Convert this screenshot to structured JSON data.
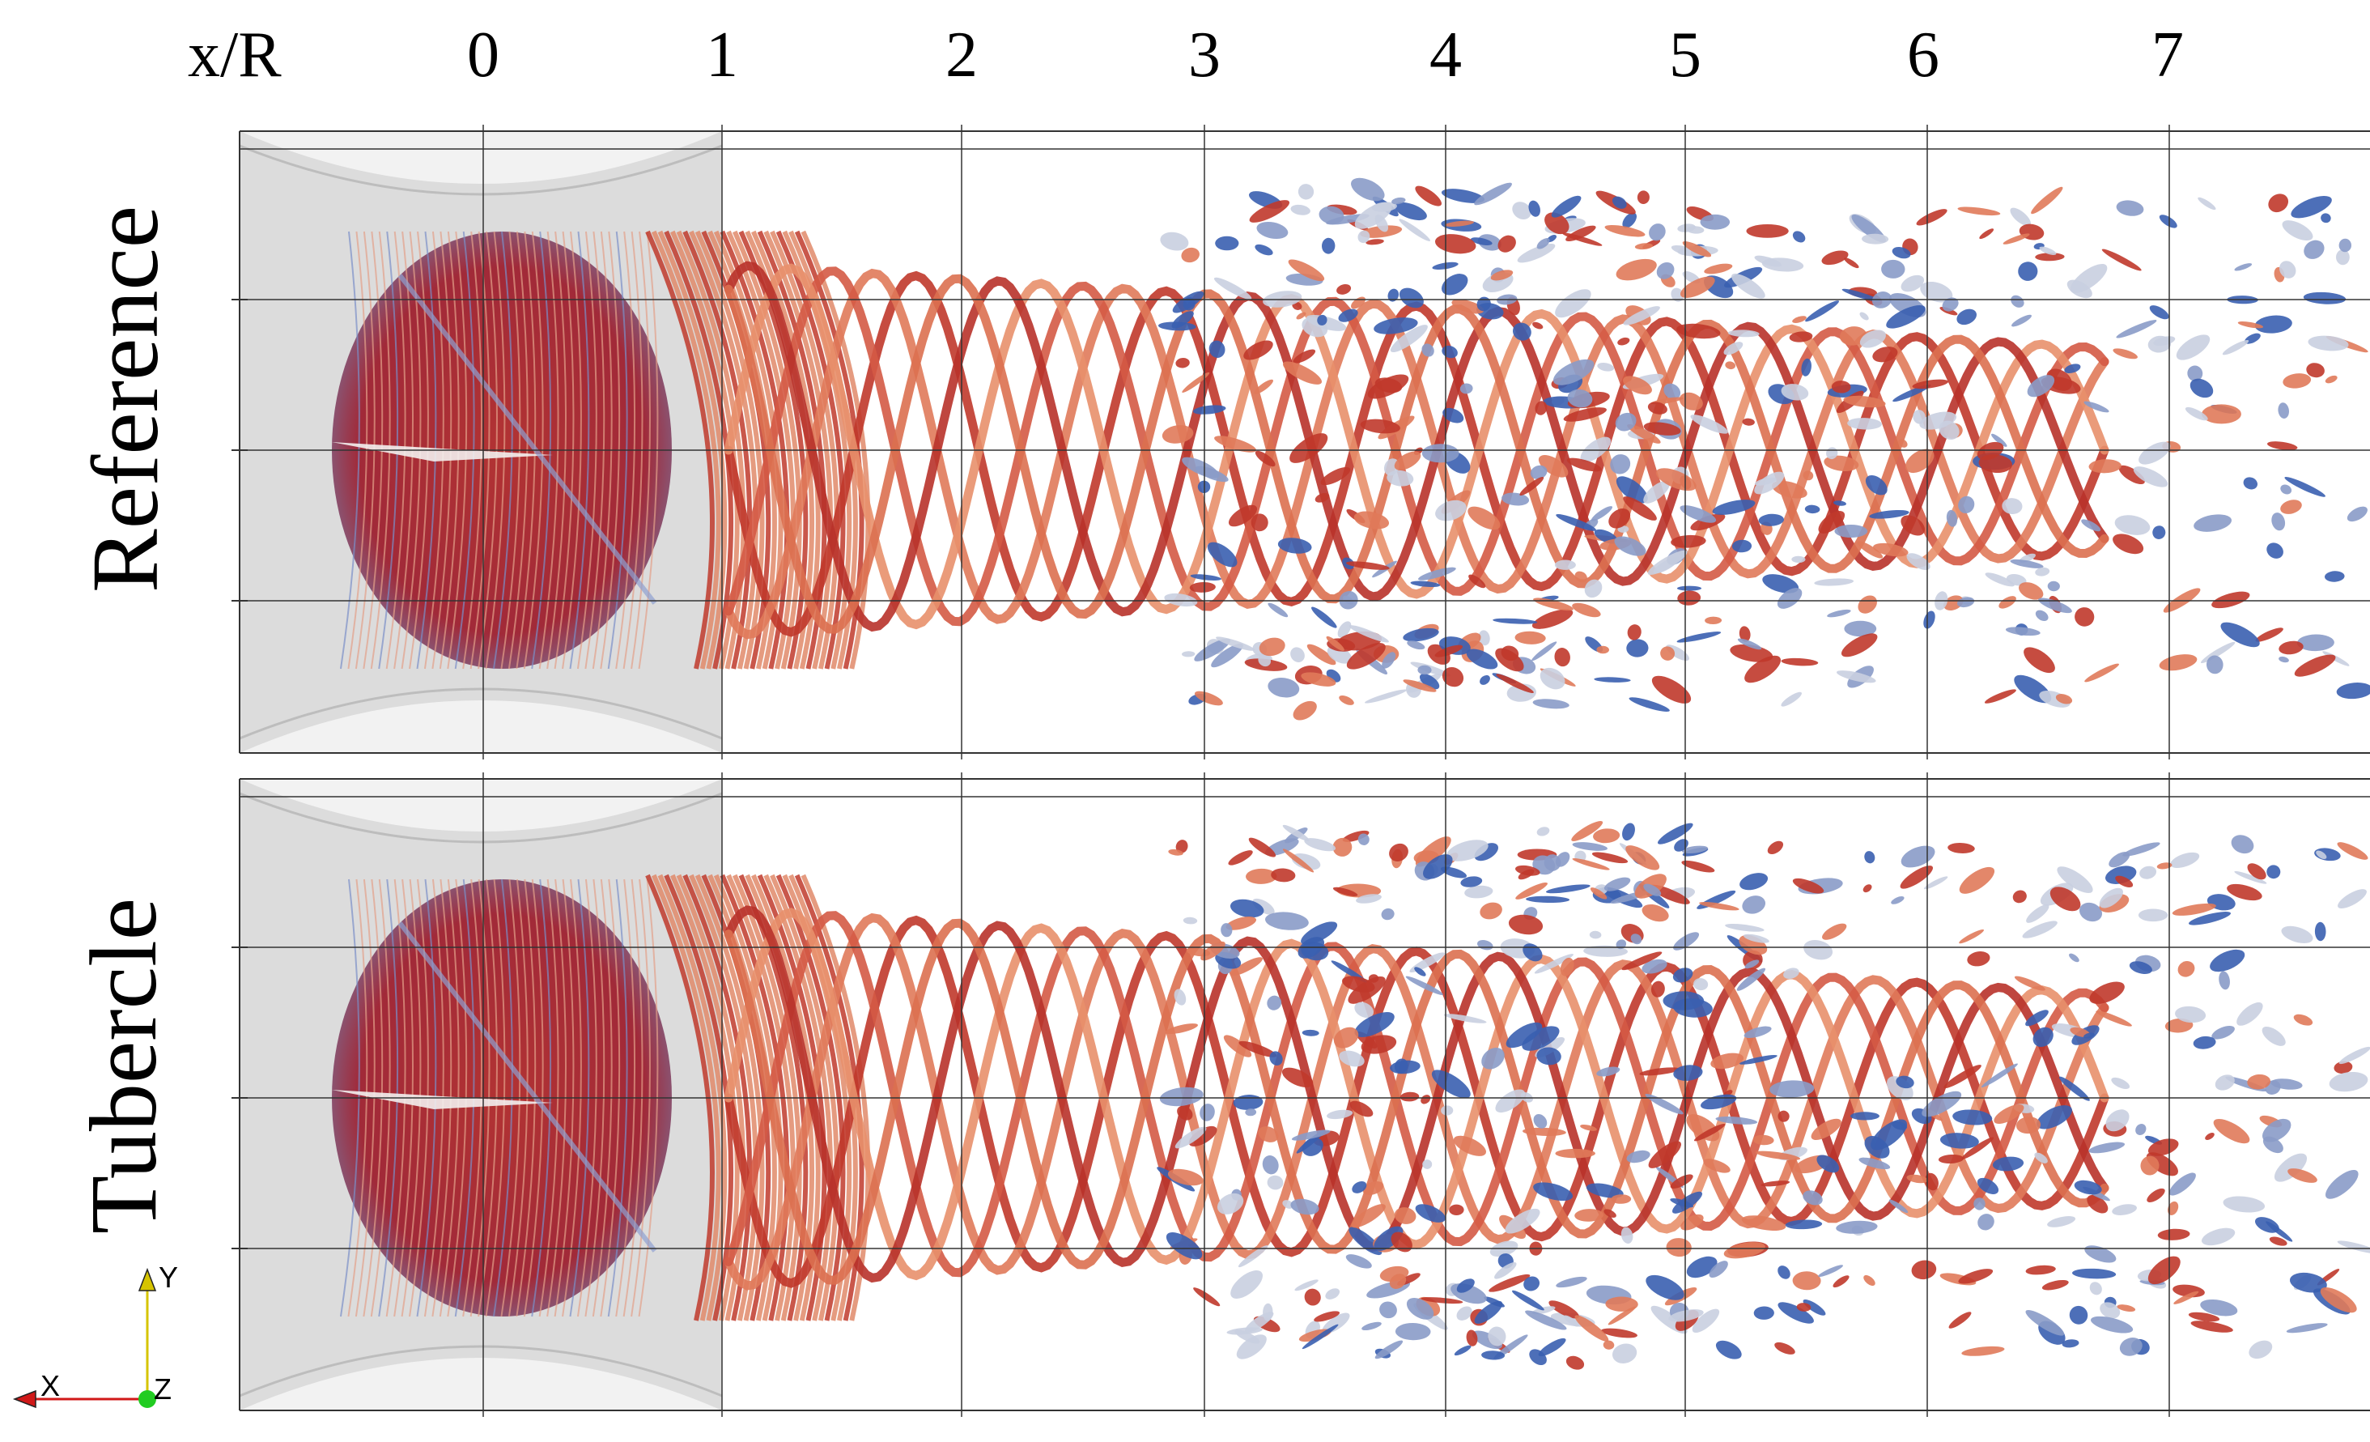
{
  "header": {
    "axis_variable": "x/R",
    "ticks": [
      "0",
      "1",
      "2",
      "3",
      "4",
      "5",
      "6",
      "7"
    ]
  },
  "panels": [
    {
      "label": "Reference"
    },
    {
      "label": "Tubercle"
    }
  ],
  "orientation_axes": {
    "x": "X",
    "y": "Y",
    "z": "Z"
  },
  "colors": {
    "vortex_red": "#c0392b",
    "vortex_salmon": "#e07a5a",
    "vortex_blue": "#3a5fb0",
    "domain_gray": "#d8d8d8",
    "grid": "#333333",
    "axis_x": "#d01818",
    "axis_y": "#d6c400",
    "axis_z": "#22cc22"
  }
}
